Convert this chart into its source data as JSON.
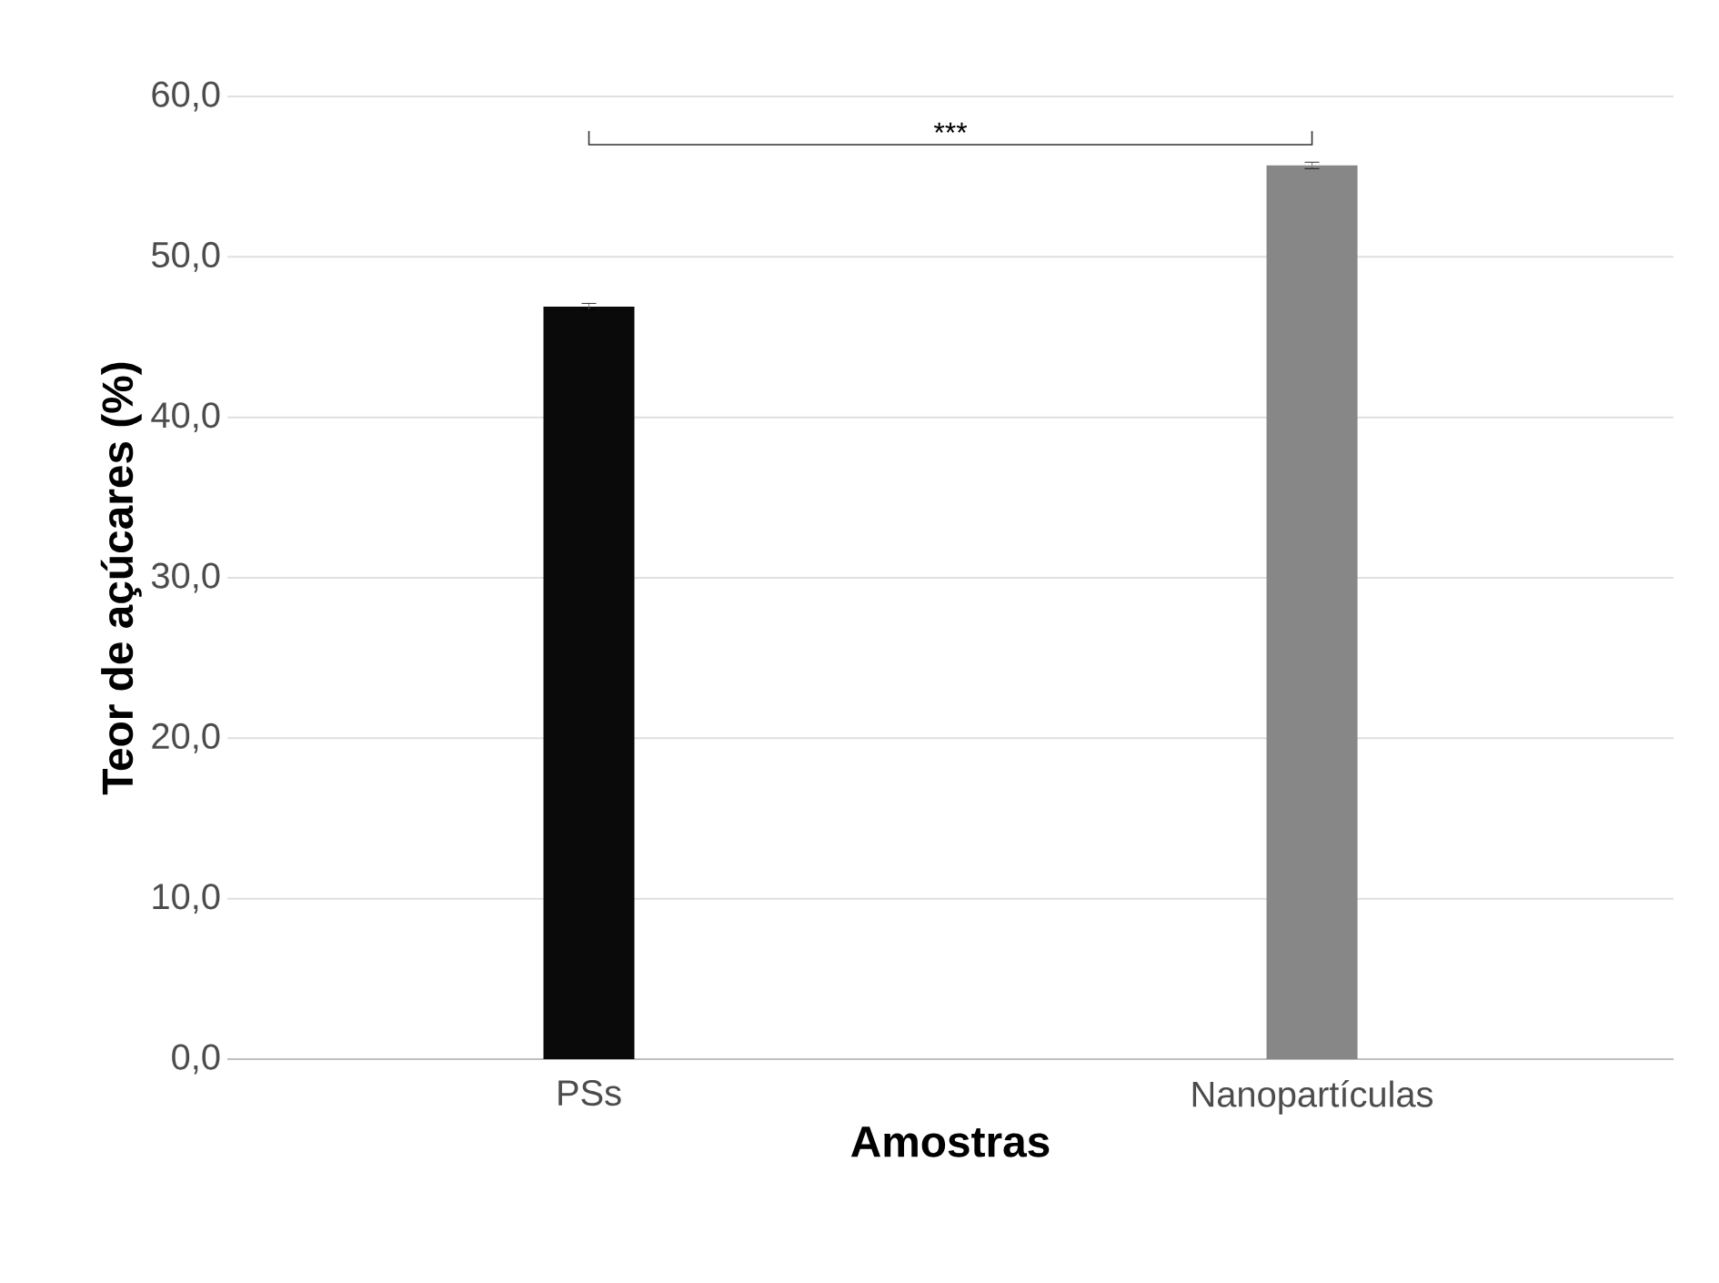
{
  "chart_data": {
    "type": "bar",
    "xlabel": "Amostras",
    "ylabel": "Teor de açúcares (%)",
    "categories": [
      "PSs",
      "Nanopartículas"
    ],
    "values": [
      46.9,
      55.7
    ],
    "errors": [
      0.2,
      0.2
    ],
    "colors": [
      "#0a0a0a",
      "#878787"
    ],
    "ylim": [
      0,
      60
    ],
    "yticks": [
      {
        "value": 0,
        "label": "0,0"
      },
      {
        "value": 10,
        "label": "10,0"
      },
      {
        "value": 20,
        "label": "20,0"
      },
      {
        "value": 30,
        "label": "30,0"
      },
      {
        "value": 40,
        "label": "40,0"
      },
      {
        "value": 50,
        "label": "50,0"
      },
      {
        "value": 60,
        "label": "60,0"
      }
    ],
    "grid": "y",
    "annotations": [
      "***"
    ]
  }
}
